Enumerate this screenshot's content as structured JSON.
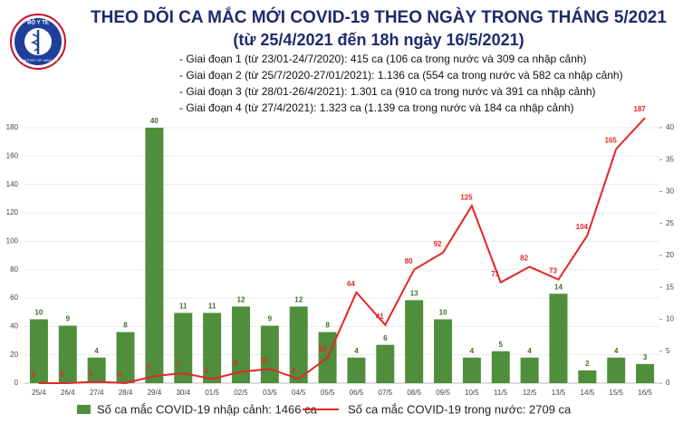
{
  "chart_data": {
    "type": "bar_line",
    "title": "THEO DÕI CA MẮC MỚI COVID-19 THEO NGÀY TRONG THÁNG 5/2021",
    "subtitle": "(từ 25/4/2021 đến 18h ngày 16/5/2021)",
    "notes": [
      "- Giai đoạn 1 (từ 23/01-24/7/2020): 415 ca (106 ca trong nước và 309 ca nhập cảnh)",
      "- Giai đoạn 2 (từ 25/7/2020-27/01/2021): 1.136 ca (554 ca trong nước và 582 ca nhập cảnh)",
      "- Giai đoạn 3 (từ 28/01-26/4/2021): 1.301 ca (910 ca trong nước và 391 ca nhập cảnh)",
      "- Giai đoạn 4 (từ 27/4/2021): 1.323 ca (1.139 ca trong nước và 184 ca nhập cảnh)"
    ],
    "logo_text": [
      "BỘ Y TẾ",
      "MINISTRY OF HEALTH"
    ],
    "categories": [
      "25/4",
      "26/4",
      "27/4",
      "28/4",
      "29/4",
      "30/4",
      "01/5",
      "02/5",
      "03/5",
      "04/5",
      "05/5",
      "06/5",
      "07/5",
      "08/5",
      "09/5",
      "10/5",
      "11/5",
      "12/5",
      "13/5",
      "14/5",
      "15/5",
      "16/5"
    ],
    "series": [
      {
        "name": "Số ca mắc COVID-19 nhập cảnh: 1466 ca",
        "type": "bar",
        "axis": "y2",
        "color": "#4f8f3c",
        "values": [
          10,
          9,
          4,
          8,
          40,
          11,
          11,
          12,
          9,
          12,
          8,
          4,
          6,
          13,
          10,
          4,
          5,
          4,
          14,
          2,
          4,
          3
        ]
      },
      {
        "name": "Số ca mắc COVID-19 trong nước: 2709 ca",
        "type": "line",
        "color": "#e3262a",
        "values": [
          0,
          0,
          1,
          0,
          5,
          7,
          3,
          8,
          10,
          3,
          18,
          64,
          41,
          80,
          92,
          125,
          71,
          82,
          73,
          104,
          165,
          187
        ]
      }
    ],
    "ylim": [
      0,
      180
    ],
    "yticks": [
      0,
      20,
      40,
      60,
      80,
      100,
      120,
      140,
      160,
      180
    ],
    "y2lim": [
      0,
      40
    ],
    "y2ticks": [
      0,
      5,
      10,
      15,
      20,
      25,
      30,
      35,
      40
    ],
    "grid": true
  }
}
